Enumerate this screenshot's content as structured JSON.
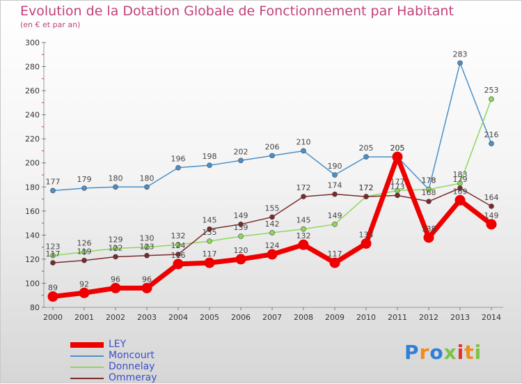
{
  "chart_data": {
    "type": "line",
    "title": "Evolution de la Dotation Globale de Fonctionnement par Habitant",
    "subtitle": "(en € et par an)",
    "xlabel": "",
    "ylabel": "",
    "categories": [
      "2000",
      "2001",
      "2002",
      "2003",
      "2004",
      "2005",
      "2006",
      "2007",
      "2008",
      "2009",
      "2010",
      "2011",
      "2012",
      "2013",
      "2014"
    ],
    "ylim": [
      80,
      300
    ],
    "yticks": [
      80,
      100,
      120,
      140,
      160,
      180,
      200,
      220,
      240,
      260,
      280,
      300
    ],
    "grid": false,
    "series": [
      {
        "name": "LEY",
        "color": "#ee0000",
        "values": [
          89,
          92,
          96,
          96,
          116,
          117,
          120,
          124,
          132,
          117,
          133,
          205,
          138,
          169,
          149
        ]
      },
      {
        "name": "Moncourt",
        "color": "#4a8fc8",
        "values": [
          177,
          179,
          180,
          180,
          196,
          198,
          202,
          206,
          210,
          190,
          205,
          205,
          178,
          283,
          216
        ]
      },
      {
        "name": "Donnelay",
        "color": "#8ed65a",
        "values": [
          123,
          126,
          129,
          130,
          132,
          135,
          139,
          142,
          145,
          149,
          172,
          177,
          178,
          183,
          253
        ]
      },
      {
        "name": "Ommeray",
        "color": "#7a2a2a",
        "values": [
          117,
          119,
          122,
          123,
          124,
          145,
          149,
          155,
          172,
          174,
          172,
          173,
          168,
          179,
          164
        ]
      }
    ]
  },
  "logo": {
    "letters": [
      "P",
      "r",
      "o",
      "x",
      "i",
      "t",
      "i"
    ],
    "colors": [
      "#2f7fd8",
      "#f08c1a",
      "#2f7fd8",
      "#7dc242",
      "#e03030",
      "#f08c1a",
      "#7dc242"
    ]
  }
}
